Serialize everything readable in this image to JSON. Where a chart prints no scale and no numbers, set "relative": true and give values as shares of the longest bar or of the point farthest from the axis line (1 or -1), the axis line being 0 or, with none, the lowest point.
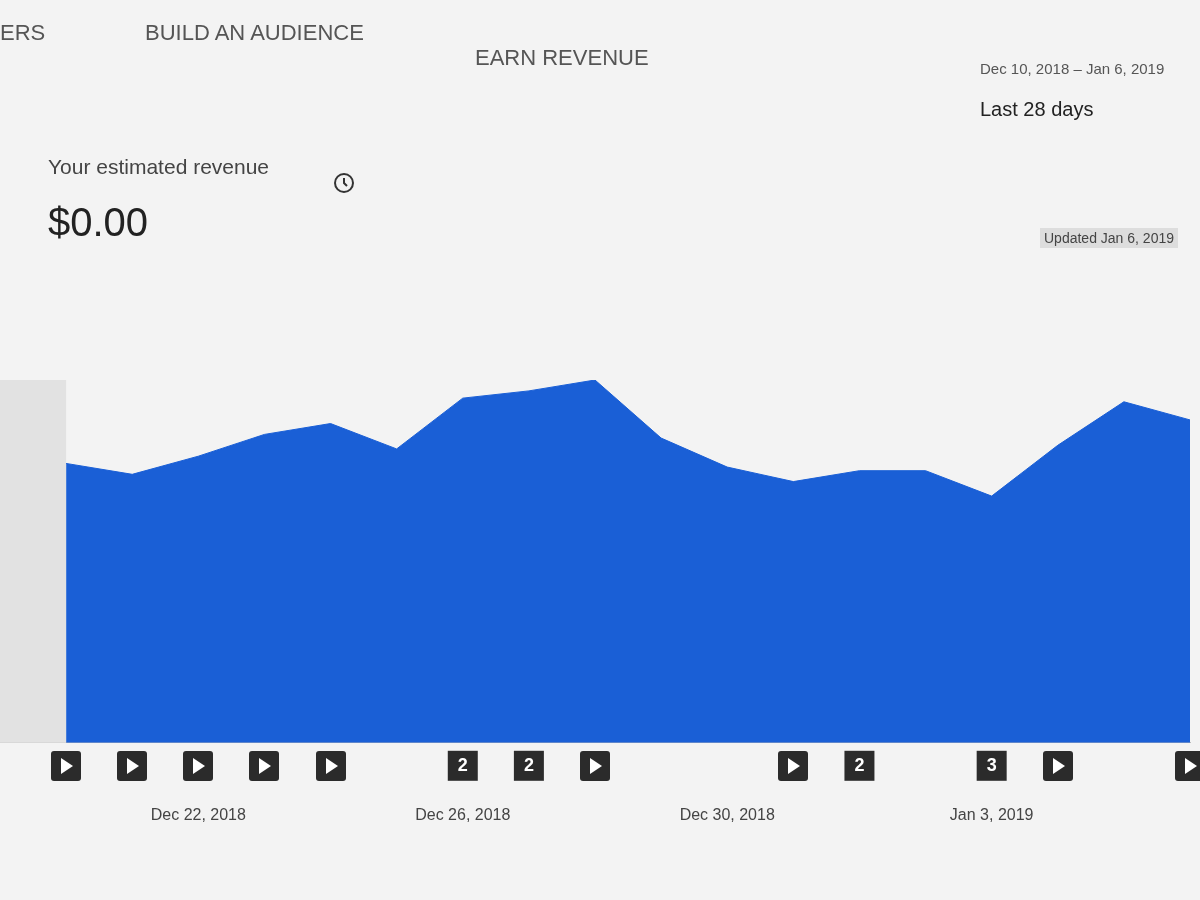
{
  "chart_data": {
    "type": "area",
    "title": "Your estimated revenue",
    "subtitle": "$0.00",
    "x": [
      "2018-12-20",
      "2018-12-21",
      "2018-12-22",
      "2018-12-23",
      "2018-12-24",
      "2018-12-25",
      "2018-12-26",
      "2018-12-27",
      "2018-12-28",
      "2018-12-29",
      "2018-12-30",
      "2018-12-31",
      "2019-01-01",
      "2019-01-02",
      "2019-01-03",
      "2019-01-04",
      "2019-01-05",
      "2019-01-06"
    ],
    "series": [
      {
        "color": "#1a5fd6",
        "values": [
          0.77,
          0.74,
          0.79,
          0.85,
          0.88,
          0.81,
          0.95,
          0.97,
          1,
          0.84,
          0.76,
          0.72,
          0.75,
          0.75,
          0.68,
          0.82,
          0.94,
          0.89
        ]
      }
    ],
    "relative": true,
    "xlim": [
      "2018-12-19",
      "2019-01-06"
    ],
    "xticks": [
      {
        "value": "2018-12-22",
        "label": "Dec 22, 2018"
      },
      {
        "value": "2018-12-26",
        "label": "Dec 26, 2018"
      },
      {
        "value": "2018-12-30",
        "label": "Dec 30, 2018"
      },
      {
        "value": "2019-01-03",
        "label": "Jan 3, 2019"
      }
    ],
    "bands": [
      {
        "axis": "x",
        "from": "2018-12-19",
        "to": "2018-12-20",
        "color": "#e2e2e2"
      }
    ],
    "legend": false,
    "annotations": [
      "ERS",
      "BUILD AN AUDIENCE",
      "EARN REVENUE",
      "Dec 10, 2018 – Jan 6, 2019",
      "Last 28 days",
      "Updated Jan 6, 2019",
      "2",
      "2",
      "2",
      "3"
    ]
  }
}
